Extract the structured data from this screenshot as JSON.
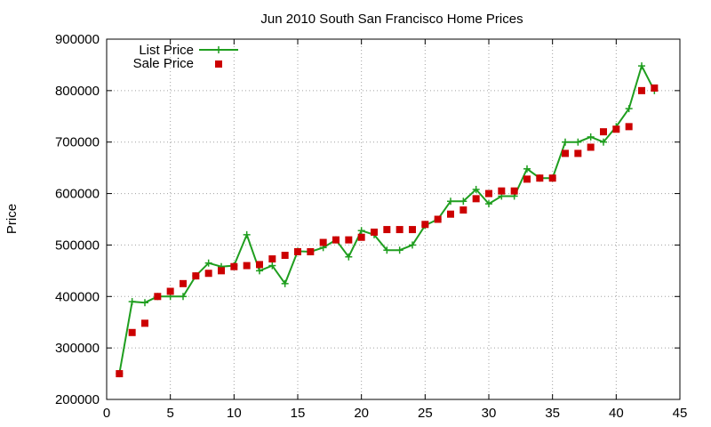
{
  "chart_data": {
    "type": "line",
    "title": "Jun 2010 South San Francisco Home Prices",
    "xlabel": "",
    "ylabel": "Price",
    "xlim": [
      0,
      45
    ],
    "ylim": [
      200000,
      900000
    ],
    "x_ticks": [
      "0",
      "5",
      "10",
      "15",
      "20",
      "25",
      "30",
      "35",
      "40",
      "45"
    ],
    "y_ticks": [
      "200000",
      "300000",
      "400000",
      "500000",
      "600000",
      "700000",
      "800000",
      "900000"
    ],
    "grid": true,
    "legend_position": "top-left",
    "series": [
      {
        "name": "List Price",
        "style": "line-with-plus-markers",
        "color": "#1f9e1f",
        "x": [
          1,
          2,
          3,
          4,
          5,
          6,
          7,
          8,
          9,
          10,
          11,
          12,
          13,
          14,
          15,
          16,
          17,
          18,
          19,
          20,
          21,
          22,
          23,
          24,
          25,
          26,
          27,
          28,
          29,
          30,
          31,
          32,
          33,
          34,
          35,
          36,
          37,
          38,
          39,
          40,
          41,
          42,
          43
        ],
        "y": [
          250000,
          390000,
          388000,
          400000,
          400000,
          400000,
          440000,
          465000,
          458000,
          460000,
          520000,
          450000,
          460000,
          425000,
          488000,
          487000,
          495000,
          510000,
          477000,
          528000,
          520000,
          490000,
          490000,
          500000,
          538000,
          550000,
          585000,
          585000,
          608000,
          580000,
          595000,
          595000,
          648000,
          630000,
          630000,
          700000,
          700000,
          710000,
          700000,
          730000,
          765000,
          848000,
          800000
        ]
      },
      {
        "name": "Sale Price",
        "style": "square-markers",
        "color": "#cc0000",
        "x": [
          1,
          2,
          3,
          4,
          5,
          6,
          7,
          8,
          9,
          10,
          11,
          12,
          13,
          14,
          15,
          16,
          17,
          18,
          19,
          20,
          21,
          22,
          23,
          24,
          25,
          26,
          27,
          28,
          29,
          30,
          31,
          32,
          33,
          34,
          35,
          36,
          37,
          38,
          39,
          40,
          41,
          42,
          43
        ],
        "y": [
          250000,
          330000,
          348000,
          400000,
          410000,
          425000,
          440000,
          445000,
          450000,
          458000,
          460000,
          462000,
          473000,
          480000,
          487000,
          487000,
          505000,
          510000,
          510000,
          515000,
          525000,
          530000,
          530000,
          530000,
          540000,
          550000,
          560000,
          568000,
          590000,
          600000,
          605000,
          605000,
          628000,
          630000,
          630000,
          678000,
          678000,
          690000,
          720000,
          725000,
          730000,
          800000,
          805000
        ]
      }
    ]
  }
}
